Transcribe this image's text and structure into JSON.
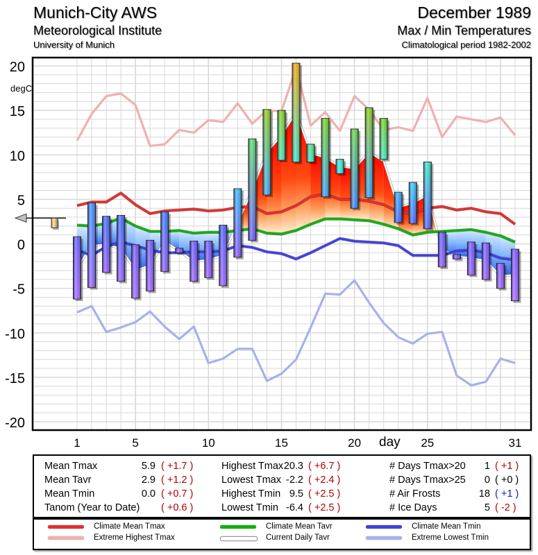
{
  "header": {
    "station": "Munich-City AWS",
    "institute": "Meteorological Institute",
    "university": "University of Munich",
    "month": "December 1989",
    "subtitle": "Max / Min Temperatures",
    "period": "Climatological period 1982-2002"
  },
  "colors": {
    "climate_mean_tmax": "#e03030",
    "extreme_highest_tmax": "#f0b0b0",
    "climate_mean_tavr": "#10b010",
    "current_daily_tavr": "#c8c8c8",
    "climate_mean_tmin": "#4040e0",
    "extreme_lowest_tmin": "#a8b0ec",
    "anomaly_positive": "#b00000",
    "anomaly_negative_blue": "#1020c0",
    "anomaly_zero": "#000000"
  },
  "chart_data": {
    "type": "bar",
    "title": "Max / Min Temperatures",
    "ylabel": "degC",
    "xlabel": "day",
    "ylim": [
      -20,
      20
    ],
    "xlim": [
      1,
      31
    ],
    "yticks": [
      20,
      15,
      10,
      5,
      0,
      -5,
      -10,
      -15,
      -20
    ],
    "xticks": [
      1,
      5,
      10,
      15,
      20,
      25,
      31
    ],
    "grid": true,
    "annual_anomaly_marker": 0.6,
    "x": [
      1,
      2,
      3,
      4,
      5,
      6,
      7,
      8,
      9,
      10,
      11,
      12,
      13,
      14,
      15,
      16,
      17,
      18,
      19,
      20,
      21,
      22,
      23,
      24,
      25,
      26,
      27,
      28,
      29,
      30,
      31
    ],
    "daily_tmax": [
      0.8,
      4.6,
      3.1,
      3.2,
      -0.1,
      0.4,
      3.6,
      -0.5,
      0.3,
      0.3,
      2.1,
      6.2,
      11.8,
      15.1,
      15.0,
      20.3,
      11.2,
      14.1,
      9.5,
      12.9,
      15.3,
      14.1,
      5.8,
      6.9,
      9.2,
      1.3,
      -1.2,
      0.2,
      0.1,
      -2.2,
      -0.6
    ],
    "daily_tmin": [
      -6.2,
      -4.9,
      -3.2,
      -4.2,
      -6.1,
      -5.3,
      -3.1,
      -1.0,
      -4.2,
      -3.8,
      -4.7,
      -1.5,
      0.4,
      5.5,
      9.4,
      9.2,
      9.2,
      5.3,
      7.9,
      4.0,
      5.2,
      9.5,
      2.4,
      2.3,
      1.7,
      -2.6,
      -1.7,
      -3.5,
      -4.0,
      -5.0,
      -6.4
    ],
    "series": [
      {
        "name": "Climate Mean Tmax",
        "values": [
          4.3,
          4.7,
          4.7,
          5.7,
          4.4,
          3.4,
          3.7,
          3.8,
          3.9,
          3.7,
          3.8,
          4.1,
          4.2,
          3.4,
          3.6,
          4.3,
          5.3,
          5.6,
          5.0,
          5.0,
          4.8,
          4.4,
          3.6,
          3.4,
          4.0,
          4.2,
          3.8,
          4.0,
          3.6,
          3.4,
          2.2
        ]
      },
      {
        "name": "Extreme Highest Tmax",
        "values": [
          11.6,
          14.6,
          16.6,
          16.9,
          15.6,
          11.0,
          11.2,
          12.8,
          12.5,
          13.9,
          13.7,
          15.8,
          13.5,
          15.0,
          14.9,
          19.8,
          13.3,
          14.8,
          12.7,
          16.6,
          15.1,
          12.8,
          13.1,
          12.7,
          16.4,
          12.0,
          14.3,
          14.0,
          13.7,
          14.2,
          12.2
        ]
      },
      {
        "name": "Climate Mean Tavr",
        "values": [
          2.1,
          2.0,
          2.3,
          2.9,
          2.0,
          1.4,
          1.4,
          1.5,
          1.2,
          1.3,
          1.3,
          1.5,
          1.7,
          1.2,
          1.1,
          1.5,
          2.2,
          2.8,
          2.8,
          2.7,
          2.6,
          2.2,
          1.7,
          1.0,
          1.3,
          1.4,
          1.5,
          1.6,
          1.3,
          0.9,
          0.2
        ]
      },
      {
        "name": "Current Daily Tavr",
        "values": [
          -2.7,
          -0.2,
          -0.1,
          -0.5,
          -3.0,
          -2.4,
          0.3,
          -0.8,
          -2.0,
          -1.8,
          -1.3,
          2.3,
          6.1,
          10.3,
          12.2,
          14.8,
          10.2,
          9.7,
          8.7,
          8.5,
          10.3,
          9.3,
          4.1,
          4.6,
          5.5,
          -0.6,
          -1.4,
          -1.6,
          -1.9,
          -3.6,
          -3.5
        ]
      },
      {
        "name": "Climate Mean Tmin",
        "values": [
          -0.7,
          -1.3,
          -0.3,
          0.2,
          -0.2,
          -0.7,
          -1.0,
          -1.0,
          -0.9,
          -0.9,
          -0.8,
          -0.2,
          -0.4,
          -0.9,
          -1.1,
          -1.7,
          -1.0,
          -0.2,
          0.6,
          0.3,
          0.2,
          0.1,
          -0.2,
          -1.3,
          -1.3,
          -1.3,
          -0.8,
          -0.7,
          -1.0,
          -1.6,
          -1.8
        ]
      },
      {
        "name": "Extreme Lowest Tmin",
        "values": [
          -7.7,
          -7.0,
          -9.9,
          -9.4,
          -8.8,
          -7.6,
          -9.3,
          -10.7,
          -9.3,
          -13.4,
          -12.9,
          -11.8,
          -11.8,
          -15.4,
          -14.6,
          -13.0,
          -9.4,
          -5.6,
          -5.7,
          -4.1,
          -6.6,
          -8.9,
          -10.5,
          -11.2,
          -10.1,
          -9.9,
          -14.8,
          -15.9,
          -15.5,
          -12.9,
          -13.4
        ]
      }
    ]
  },
  "axis": {
    "y_unit": "degC",
    "x_title": "day",
    "ytick_labels": [
      "20",
      "15",
      "10",
      "5",
      "0",
      "-5",
      "-10",
      "-15",
      "-20"
    ],
    "xtick_labels": [
      "1",
      "5",
      "10",
      "15",
      "20",
      "25",
      "31"
    ]
  },
  "stats": {
    "col1": [
      {
        "label": "Mean Tmax",
        "value": "5.9",
        "anom": "( +1.7 )",
        "sign": "pos"
      },
      {
        "label": "Mean Tavr",
        "value": "2.9",
        "anom": "( +1.2 )",
        "sign": "pos"
      },
      {
        "label": "Mean Tmin",
        "value": "0.0",
        "anom": "( +0.7 )",
        "sign": "pos"
      },
      {
        "label": "Tanom (Year to Date)",
        "value": "",
        "anom": "( +0.6 )",
        "sign": "pos"
      }
    ],
    "col2": [
      {
        "label": "Highest Tmax",
        "value": "20.3",
        "anom": "( +6.7 )",
        "sign": "pos"
      },
      {
        "label": "Lowest Tmax",
        "value": "-2.2",
        "anom": "( +2.4 )",
        "sign": "pos"
      },
      {
        "label": "Highest Tmin",
        "value": "9.5",
        "anom": "( +2.5 )",
        "sign": "pos"
      },
      {
        "label": "Lowest Tmin",
        "value": "-6.4",
        "anom": "( +2.5 )",
        "sign": "pos"
      }
    ],
    "col3": [
      {
        "label": "# Days Tmax>20",
        "value": "1",
        "anom": "( +1 )",
        "sign": "pos"
      },
      {
        "label": "# Days Tmax>25",
        "value": "0",
        "anom": "( +0 )",
        "sign": "zero"
      },
      {
        "label": "# Air Frosts",
        "value": "18",
        "anom": "( +1 )",
        "sign": "blue"
      },
      {
        "label": "# Ice Days",
        "value": "5",
        "anom": "( -2 )",
        "sign": "pos"
      }
    ]
  },
  "legend": [
    {
      "label": "Climate Mean Tmax",
      "color": "#e03030"
    },
    {
      "label": "Extreme Highest Tmax",
      "color": "#f0b0b0"
    },
    {
      "label": "Climate Mean Tavr",
      "color": "#10b010"
    },
    {
      "label": "Current Daily Tavr",
      "color": "#ffffff"
    },
    {
      "label": "Climate Mean Tmin",
      "color": "#4040e0"
    },
    {
      "label": "Extreme Lowest Tmin",
      "color": "#a8b0ec"
    }
  ]
}
